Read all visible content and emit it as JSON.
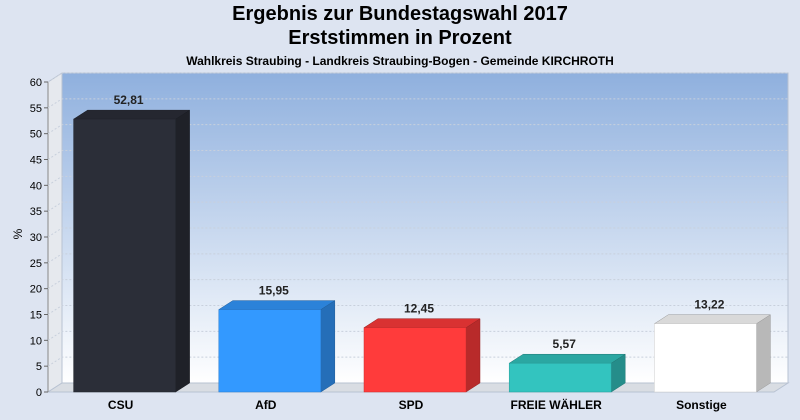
{
  "title": "Ergebnis zur Bundestagswahl 2017",
  "subtitle": "Erststimmen in Prozent",
  "caption": "Wahlkreis Straubing - Landkreis Straubing-Bogen - Gemeinde KIRCHROTH",
  "chart_data": {
    "type": "bar",
    "title": "Ergebnis zur Bundestagswahl 2017",
    "subtitle": "Erststimmen in Prozent",
    "xlabel": "",
    "ylabel": "%",
    "ylim": [
      0,
      60
    ],
    "yticks": [
      0,
      5,
      10,
      15,
      20,
      25,
      30,
      35,
      40,
      45,
      50,
      55,
      60
    ],
    "categories": [
      "CSU",
      "AfD",
      "SPD",
      "FREIE WÄHLER",
      "Sonstige"
    ],
    "values": [
      52.81,
      15.95,
      12.45,
      5.57,
      13.22
    ],
    "value_labels": [
      "52,81",
      "15,95",
      "12,45",
      "5,57",
      "13,22"
    ],
    "colors": [
      "#2b2e38",
      "#3399ff",
      "#ff3b3b",
      "#33c4bf",
      "#ffffff"
    ],
    "grid": true,
    "legend": "none"
  }
}
